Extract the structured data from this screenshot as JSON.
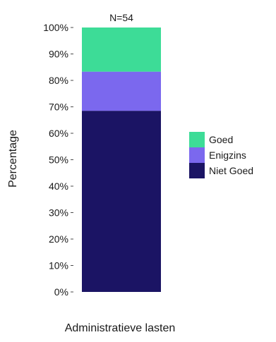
{
  "chart_data": {
    "type": "bar",
    "stacked": true,
    "categories": [
      "Administratieve lasten"
    ],
    "series": [
      {
        "name": "Niet Goed",
        "values": [
          68.5
        ],
        "color": "#1b1464"
      },
      {
        "name": "Enigzins",
        "values": [
          14.8
        ],
        "color": "#7b68ee"
      },
      {
        "name": "Goed",
        "values": [
          16.7
        ],
        "color": "#3ddc97"
      }
    ],
    "annotation": "N=54",
    "xlabel": "Administratieve lasten",
    "ylabel": "Percentage",
    "ylim": [
      0,
      100
    ],
    "yticks": [
      0,
      10,
      20,
      30,
      40,
      50,
      60,
      70,
      80,
      90,
      100
    ],
    "ytick_labels": [
      "0%",
      "10%",
      "20%",
      "30%",
      "40%",
      "50%",
      "60%",
      "70%",
      "80%",
      "90%",
      "100%"
    ],
    "legend": {
      "placement": "right",
      "entries": [
        "Goed",
        "Enigzins",
        "Niet Goed"
      ]
    },
    "grid": false
  }
}
